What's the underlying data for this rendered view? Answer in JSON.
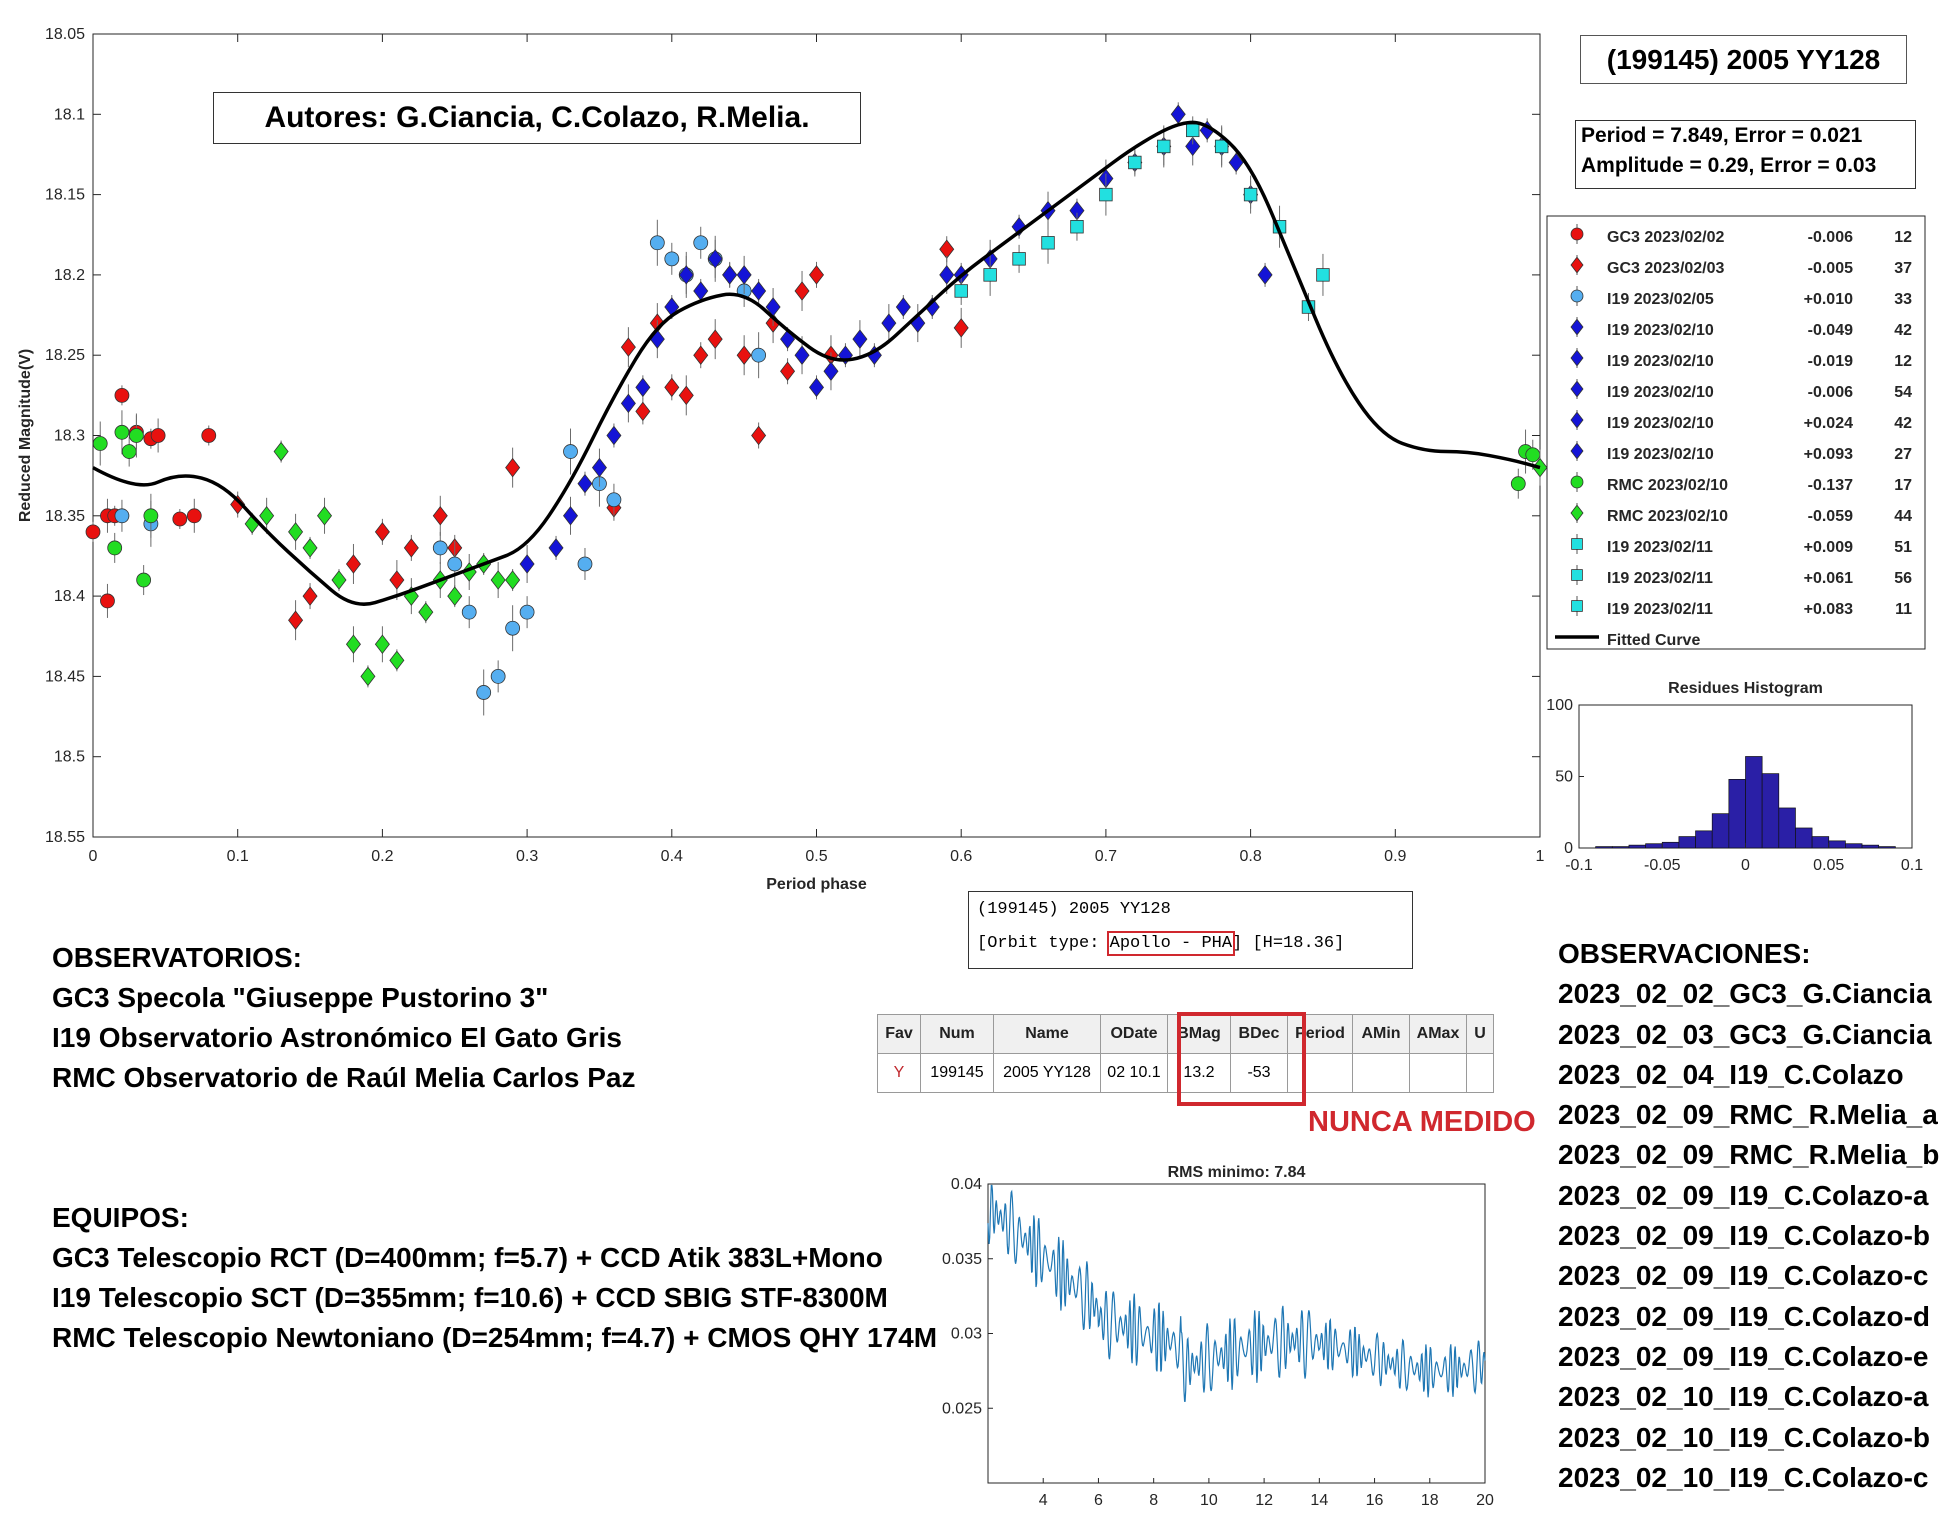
{
  "main_plot": {
    "title_box": "(199145) 2005 YY128",
    "authors": "Autores: G.Ciancia, C.Colazo, R.Melia.",
    "fit_info": [
      "Period =  7.849, Error = 0.021",
      "Amplitude = 0.29, Error = 0.03"
    ],
    "xlabel": "Period phase",
    "ylabel": "Reduced Magnitude(V)",
    "xticks": [
      "0",
      "0.1",
      "0.2",
      "0.3",
      "0.4",
      "0.5",
      "0.6",
      "0.7",
      "0.8",
      "0.9",
      "1"
    ],
    "yticks": [
      "18.05",
      "18.1",
      "18.15",
      "18.2",
      "18.25",
      "18.3",
      "18.35",
      "18.4",
      "18.45",
      "18.5",
      "18.55"
    ],
    "legend": [
      {
        "label": "GC3 2023/02/02",
        "offset": "-0.006",
        "n": "12",
        "color": "#e8110f",
        "marker": "circle"
      },
      {
        "label": "GC3 2023/02/03",
        "offset": "-0.005",
        "n": "37",
        "color": "#e8110f",
        "marker": "diamond"
      },
      {
        "label": "I19 2023/02/05",
        "offset": "+0.010",
        "n": "33",
        "color": "#55aef0",
        "marker": "circle"
      },
      {
        "label": "I19 2023/02/10",
        "offset": "-0.049",
        "n": "42",
        "color": "#1414d6",
        "marker": "diamond"
      },
      {
        "label": "I19 2023/02/10",
        "offset": "-0.019",
        "n": "12",
        "color": "#1414d6",
        "marker": "diamond"
      },
      {
        "label": "I19 2023/02/10",
        "offset": "-0.006",
        "n": "54",
        "color": "#1414d6",
        "marker": "diamond"
      },
      {
        "label": "I19 2023/02/10",
        "offset": "+0.024",
        "n": "42",
        "color": "#1414d6",
        "marker": "diamond"
      },
      {
        "label": "I19 2023/02/10",
        "offset": "+0.093",
        "n": "27",
        "color": "#1414d6",
        "marker": "diamond"
      },
      {
        "label": "RMC 2023/02/10",
        "offset": "-0.137",
        "n": "17",
        "color": "#22dd22",
        "marker": "circle"
      },
      {
        "label": "RMC 2023/02/10",
        "offset": "-0.059",
        "n": "44",
        "color": "#22dd22",
        "marker": "diamond"
      },
      {
        "label": "I19 2023/02/11",
        "offset": "+0.009",
        "n": "51",
        "color": "#22e0e0",
        "marker": "square"
      },
      {
        "label": "I19 2023/02/11",
        "offset": "+0.061",
        "n": "56",
        "color": "#22e0e0",
        "marker": "square"
      },
      {
        "label": "I19 2023/02/11",
        "offset": "+0.083",
        "n": "11",
        "color": "#22e0e0",
        "marker": "square"
      },
      {
        "label": "Fitted Curve",
        "offset": "",
        "n": "",
        "color": "#000000",
        "marker": "line"
      }
    ]
  },
  "chart_data": [
    {
      "type": "scatter",
      "xlabel": "Period phase",
      "ylabel": "Reduced Magnitude(V)",
      "xlim": [
        0,
        1
      ],
      "ylim": [
        18.55,
        18.05
      ],
      "y_reversed": true,
      "fitted_curve": {
        "x": [
          0,
          0.03,
          0.06,
          0.09,
          0.12,
          0.15,
          0.18,
          0.21,
          0.24,
          0.27,
          0.3,
          0.33,
          0.36,
          0.39,
          0.42,
          0.45,
          0.48,
          0.51,
          0.54,
          0.57,
          0.6,
          0.63,
          0.66,
          0.69,
          0.72,
          0.75,
          0.77,
          0.8,
          0.83,
          0.86,
          0.89,
          0.92,
          0.95,
          0.98,
          1.0
        ],
        "y": [
          18.32,
          18.335,
          18.323,
          18.33,
          18.36,
          18.385,
          18.408,
          18.4,
          18.39,
          18.38,
          18.37,
          18.33,
          18.275,
          18.23,
          18.215,
          18.21,
          18.235,
          18.255,
          18.25,
          18.225,
          18.2,
          18.18,
          18.16,
          18.14,
          18.12,
          18.105,
          18.105,
          18.13,
          18.195,
          18.26,
          18.3,
          18.31,
          18.31,
          18.315,
          18.32
        ]
      },
      "series": [
        {
          "name": "GC3 2023/02/02",
          "x": [
            0.0,
            0.01,
            0.02,
            0.03,
            0.04,
            0.045,
            0.06,
            0.07,
            0.08,
            0.01,
            0.015
          ],
          "y": [
            18.36,
            18.403,
            18.275,
            18.298,
            18.302,
            18.3,
            18.352,
            18.35,
            18.3,
            18.35,
            18.35
          ]
        },
        {
          "name": "GC3 2023/02/03",
          "x": [
            0.1,
            0.14,
            0.15,
            0.18,
            0.2,
            0.21,
            0.22,
            0.24,
            0.25,
            0.29,
            0.36,
            0.37,
            0.38,
            0.39,
            0.4,
            0.41,
            0.42,
            0.43,
            0.44,
            0.45,
            0.46,
            0.47,
            0.48,
            0.49,
            0.5,
            0.51,
            0.59,
            0.6
          ],
          "y": [
            18.343,
            18.415,
            18.4,
            18.38,
            18.36,
            18.39,
            18.37,
            18.35,
            18.37,
            18.32,
            18.345,
            18.245,
            18.285,
            18.23,
            18.27,
            18.275,
            18.25,
            18.24,
            18.2,
            18.25,
            18.3,
            18.23,
            18.26,
            18.21,
            18.2,
            18.25,
            18.184,
            18.233
          ]
        },
        {
          "name": "I19 2023/02/05",
          "x": [
            0.02,
            0.04,
            0.24,
            0.25,
            0.26,
            0.27,
            0.28,
            0.29,
            0.3,
            0.33,
            0.34,
            0.35,
            0.36,
            0.39,
            0.4,
            0.41,
            0.42,
            0.43,
            0.45,
            0.46
          ],
          "y": [
            18.35,
            18.355,
            18.37,
            18.38,
            18.41,
            18.46,
            18.45,
            18.42,
            18.41,
            18.31,
            18.38,
            18.33,
            18.34,
            18.18,
            18.19,
            18.2,
            18.18,
            18.19,
            18.21,
            18.25
          ]
        },
        {
          "name": "I19 2023/02/10",
          "x": [
            0.3,
            0.32,
            0.33,
            0.34,
            0.35,
            0.36,
            0.37,
            0.38,
            0.39,
            0.4,
            0.41,
            0.42,
            0.43,
            0.44,
            0.45,
            0.46,
            0.47,
            0.48,
            0.49,
            0.5,
            0.51,
            0.52,
            0.53,
            0.54,
            0.55,
            0.56,
            0.57,
            0.58,
            0.59,
            0.6,
            0.62,
            0.64,
            0.66,
            0.68,
            0.7,
            0.72,
            0.74,
            0.75,
            0.76,
            0.77,
            0.78,
            0.79,
            0.8,
            0.81
          ],
          "y": [
            18.38,
            18.37,
            18.35,
            18.33,
            18.32,
            18.3,
            18.28,
            18.27,
            18.24,
            18.22,
            18.2,
            18.21,
            18.19,
            18.2,
            18.2,
            18.21,
            18.22,
            18.24,
            18.25,
            18.27,
            18.26,
            18.25,
            18.24,
            18.25,
            18.23,
            18.22,
            18.23,
            18.22,
            18.2,
            18.2,
            18.19,
            18.17,
            18.16,
            18.16,
            18.14,
            18.13,
            18.12,
            18.1,
            18.12,
            18.11,
            18.12,
            18.13,
            18.15,
            18.2
          ]
        },
        {
          "name": "RMC 2023/02/10",
          "x": [
            0.005,
            0.015,
            0.02,
            0.025,
            0.03,
            0.035,
            0.04,
            0.985,
            0.99,
            0.995
          ],
          "y": [
            18.305,
            18.37,
            18.298,
            18.31,
            18.3,
            18.39,
            18.35,
            18.33,
            18.31,
            18.312
          ]
        },
        {
          "name": "RMC 2023/02/10",
          "x": [
            0.11,
            0.12,
            0.13,
            0.14,
            0.15,
            0.16,
            0.17,
            0.18,
            0.19,
            0.2,
            0.21,
            0.22,
            0.23,
            0.24,
            0.25,
            0.26,
            0.27,
            0.28,
            0.29,
            1.0
          ],
          "y": [
            18.355,
            18.35,
            18.31,
            18.36,
            18.37,
            18.35,
            18.39,
            18.43,
            18.45,
            18.43,
            18.44,
            18.4,
            18.41,
            18.39,
            18.4,
            18.385,
            18.38,
            18.39,
            18.39,
            18.32
          ]
        },
        {
          "name": "I19 2023/02/11",
          "x": [
            0.6,
            0.62,
            0.64,
            0.66,
            0.68,
            0.7,
            0.72,
            0.74,
            0.76,
            0.78,
            0.8,
            0.82,
            0.84,
            0.85
          ],
          "y": [
            18.21,
            18.2,
            18.19,
            18.18,
            18.17,
            18.15,
            18.13,
            18.12,
            18.11,
            18.12,
            18.15,
            18.17,
            18.22,
            18.2
          ]
        }
      ]
    },
    {
      "type": "bar",
      "title": "Residues Histogram",
      "xlim": [
        -0.1,
        0.1
      ],
      "ylim": [
        0,
        100
      ],
      "xticks": [
        "-0.1",
        "-0.05",
        "0",
        "0.05",
        "0.1"
      ],
      "yticks": [
        "0",
        "50",
        "100"
      ],
      "bin_centers": [
        -0.085,
        -0.075,
        -0.065,
        -0.055,
        -0.045,
        -0.035,
        -0.025,
        -0.015,
        -0.005,
        0.005,
        0.015,
        0.025,
        0.035,
        0.045,
        0.055,
        0.065,
        0.075,
        0.085
      ],
      "values": [
        1,
        1,
        2,
        3,
        4,
        8,
        12,
        24,
        48,
        64,
        52,
        28,
        14,
        8,
        5,
        3,
        2,
        1
      ]
    },
    {
      "type": "line",
      "title": "RMS minimo: 7.84",
      "xlim": [
        2,
        20
      ],
      "ylim": [
        0.02,
        0.04
      ],
      "xticks": [
        "4",
        "6",
        "8",
        "10",
        "12",
        "14",
        "16",
        "18",
        "20"
      ],
      "yticks": [
        "0.025",
        "0.03",
        "0.035",
        "0.04"
      ]
    }
  ],
  "orbit_box": {
    "line1": "(199145) 2005 YY128",
    "line2_prefix": "[Orbit type: ",
    "line2_type": "Apollo - PHA",
    "line2_suffix": "] [H=18.36]"
  },
  "mpc_table": {
    "headers": [
      "Fav",
      "Num",
      "Name",
      "ODate",
      "BMag",
      "BDec",
      "Period",
      "AMin",
      "AMax",
      "U"
    ],
    "row": [
      "Y",
      "199145",
      "2005 YY128",
      "02 10.1",
      "13.2",
      "-53",
      "",
      "",
      "",
      ""
    ],
    "stamp": "NUNCA MEDIDO"
  },
  "observatorios": {
    "title": "OBSERVATORIOS:",
    "lines": [
      "GC3 Specola \"Giuseppe Pustorino 3\"",
      "I19 Observatorio Astronómico El Gato Gris",
      "RMC Observatorio de Raúl Melia Carlos Paz"
    ]
  },
  "equipos": {
    "title": "EQUIPOS:",
    "lines": [
      "GC3 Telescopio RCT (D=400mm; f=5.7) + CCD Atik 383L+Mono",
      "I19 Telescopio SCT (D=355mm; f=10.6) + CCD SBIG STF-8300M",
      "RMC Telescopio Newtoniano (D=254mm; f=4.7) + CMOS QHY 174M"
    ]
  },
  "observaciones": {
    "title": "OBSERVACIONES:",
    "lines": [
      "2023_02_02_GC3_G.Ciancia",
      "2023_02_03_GC3_G.Ciancia",
      "2023_02_04_I19_C.Colazo",
      "2023_02_09_RMC_R.Melia_a",
      "2023_02_09_RMC_R.Melia_b",
      "2023_02_09_I19_C.Colazo-a",
      "2023_02_09_I19_C.Colazo-b",
      "2023_02_09_I19_C.Colazo-c",
      "2023_02_09_I19_C.Colazo-d",
      "2023_02_09_I19_C.Colazo-e",
      "2023_02_10_I19_C.Colazo-a",
      "2023_02_10_I19_C.Colazo-b",
      "2023_02_10_I19_C.Colazo-c"
    ]
  }
}
